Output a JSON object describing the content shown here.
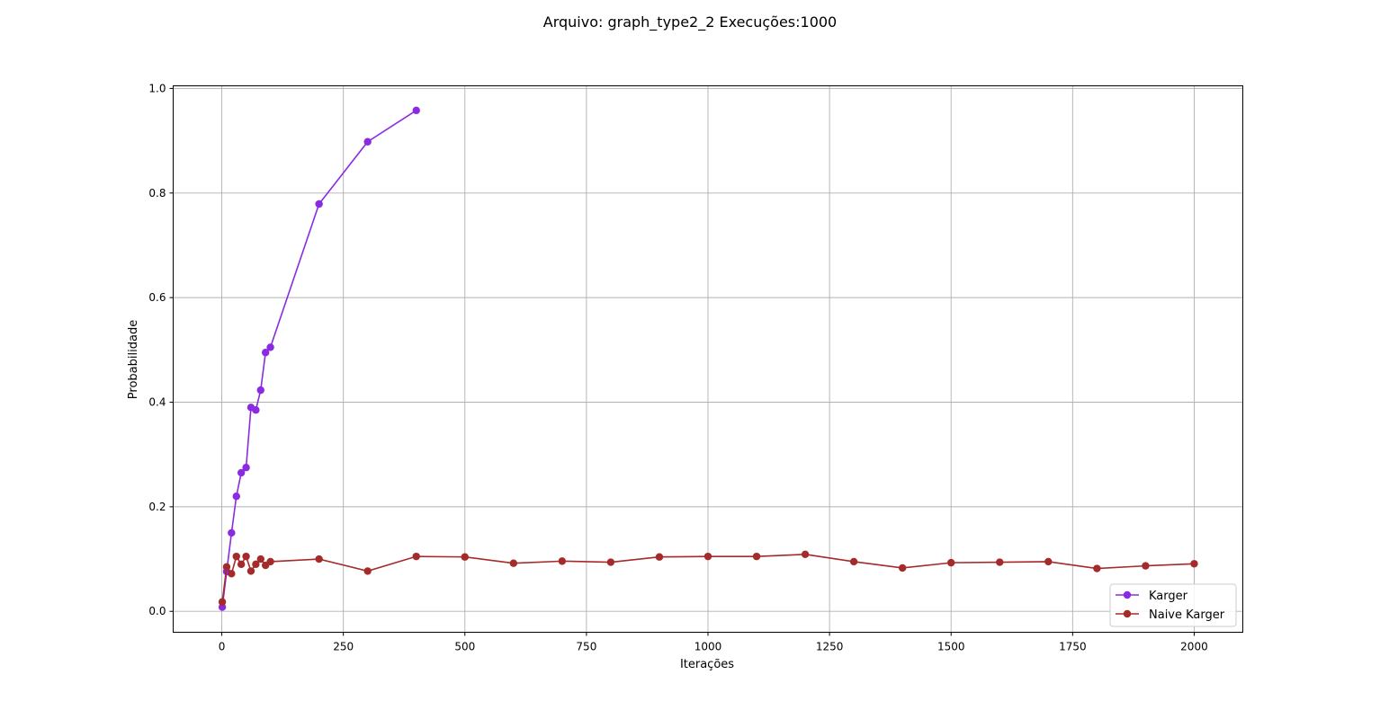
{
  "chart_data": {
    "type": "line",
    "title": "Arquivo: graph_type2_2 Execuções:1000",
    "xlabel": "Iterações",
    "ylabel": "Probabilidade",
    "xlim": [
      -100,
      2100
    ],
    "ylim": [
      -0.04,
      1.005
    ],
    "xticks": [
      0,
      250,
      500,
      750,
      1000,
      1250,
      1500,
      1750,
      2000
    ],
    "xtick_labels": [
      "0",
      "250",
      "500",
      "750",
      "1000",
      "1250",
      "1500",
      "1750",
      "2000"
    ],
    "yticks": [
      0.0,
      0.2,
      0.4,
      0.6,
      0.8,
      1.0
    ],
    "ytick_labels": [
      "0.0",
      "0.2",
      "0.4",
      "0.6",
      "0.8",
      "1.0"
    ],
    "grid": true,
    "legend_position": "bottom-right",
    "series": [
      {
        "name": "Karger",
        "color": "#8a2be2",
        "marker": "circle",
        "x": [
          1,
          10,
          20,
          30,
          40,
          50,
          60,
          70,
          80,
          90,
          100,
          200,
          300,
          400
        ],
        "y": [
          0.008,
          0.076,
          0.15,
          0.22,
          0.265,
          0.275,
          0.39,
          0.385,
          0.423,
          0.495,
          0.505,
          0.779,
          0.898,
          0.958
        ]
      },
      {
        "name": "Naive Karger",
        "color": "#a52a2a",
        "marker": "circle",
        "x": [
          1,
          10,
          20,
          30,
          40,
          50,
          60,
          70,
          80,
          90,
          100,
          200,
          300,
          400,
          500,
          600,
          700,
          800,
          900,
          1000,
          1100,
          1200,
          1300,
          1400,
          1500,
          1600,
          1700,
          1800,
          1900,
          2000
        ],
        "y": [
          0.018,
          0.085,
          0.072,
          0.105,
          0.09,
          0.105,
          0.077,
          0.09,
          0.1,
          0.088,
          0.095,
          0.1,
          0.077,
          0.105,
          0.104,
          0.092,
          0.096,
          0.094,
          0.104,
          0.105,
          0.105,
          0.109,
          0.095,
          0.083,
          0.093,
          0.094,
          0.095,
          0.082,
          0.087,
          0.091
        ]
      }
    ]
  }
}
